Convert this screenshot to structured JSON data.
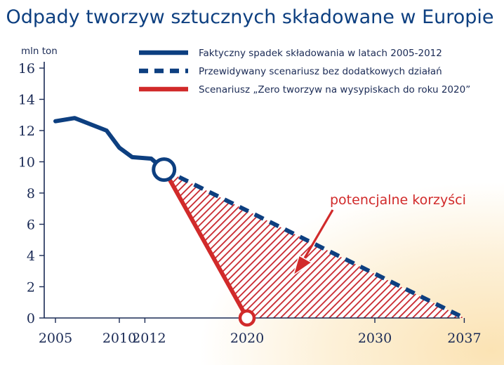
{
  "chart_data": {
    "type": "line",
    "title": "Odpady tworzyw sztucznych składowane w Europie",
    "ylabel": "mln ton",
    "xlim": [
      2005,
      2037
    ],
    "ylim": [
      0,
      16
    ],
    "x_ticks": [
      2005,
      2010,
      2012,
      2020,
      2030,
      2037
    ],
    "y_ticks": [
      0,
      2,
      4,
      6,
      8,
      10,
      12,
      14,
      16
    ],
    "grid": false,
    "legend_position": "top-right",
    "series": [
      {
        "name": "Faktyczny spadek składowania w latach 2005-2012",
        "style": "solid",
        "color": "#0d3f80",
        "x": [
          2005,
          2006.5,
          2009,
          2010,
          2011,
          2012.5,
          2013.5
        ],
        "y": [
          12.6,
          12.8,
          12.0,
          10.9,
          10.3,
          10.2,
          9.5
        ]
      },
      {
        "name": "Przewidywany scenariusz bez dodatkowych działań",
        "style": "dashed",
        "color": "#0d3f80",
        "x": [
          2013.5,
          2037
        ],
        "y": [
          9.5,
          0
        ]
      },
      {
        "name": "Scenariusz „Zero tworzyw na wysypiskach do roku 2020”",
        "style": "solid",
        "color": "#d12a2a",
        "x": [
          2013.5,
          2020
        ],
        "y": [
          9.5,
          0
        ]
      }
    ],
    "annotations": [
      {
        "text": "potencjalne korzyści",
        "color": "#d12a2a"
      }
    ],
    "colors": {
      "navy": "#0d3f80",
      "red": "#d12a2a",
      "axis": "#1a2a55"
    }
  }
}
